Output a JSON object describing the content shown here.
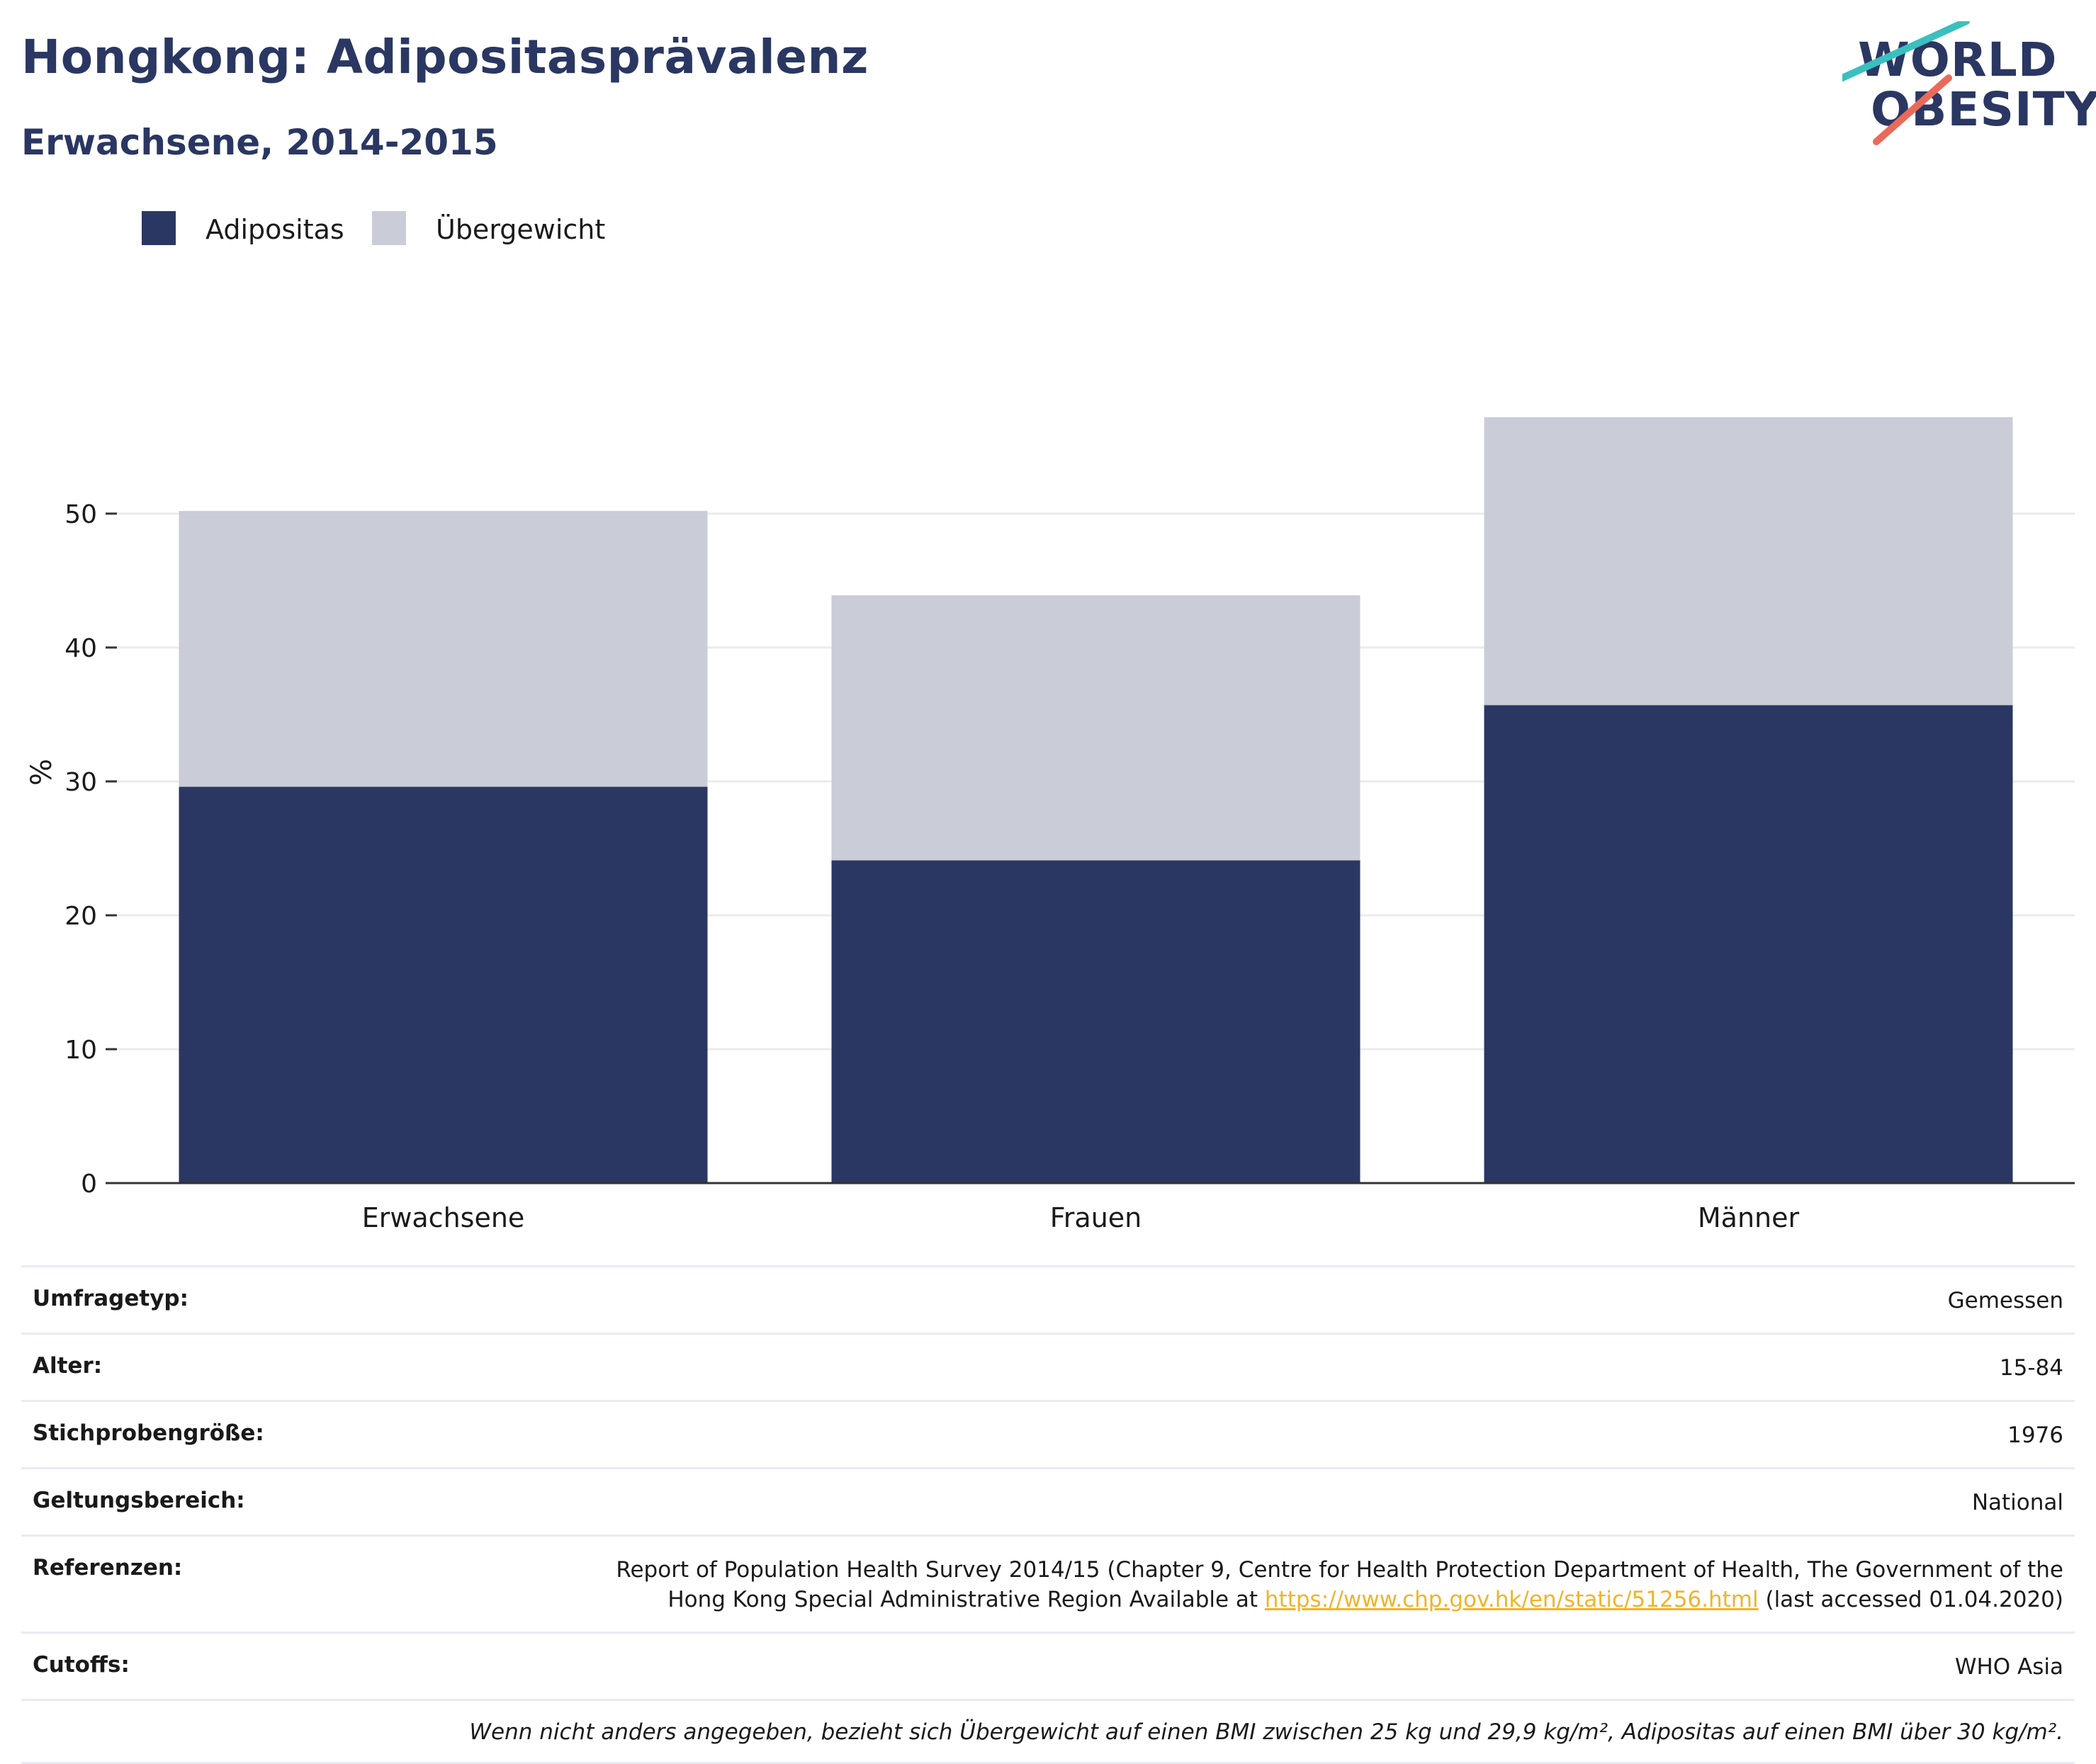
{
  "header": {
    "title": "Hongkong: Adipositasprävalenz",
    "subtitle": "Erwachsene, 2014-2015"
  },
  "logo": {
    "line1": "WORLD",
    "line2": "OBESITY",
    "colors": {
      "text": "#2a3762",
      "slash_top": "#3bbfbf",
      "slash_bottom": "#ea6a5a"
    }
  },
  "legend": [
    {
      "label": "Adipositas",
      "color": "#2a3762"
    },
    {
      "label": "Übergewicht",
      "color": "#caccd8"
    }
  ],
  "chart_data": {
    "type": "bar",
    "stacked": true,
    "categories": [
      "Erwachsene",
      "Frauen",
      "Männer"
    ],
    "series": [
      {
        "name": "Adipositas",
        "color": "#2a3762",
        "values": [
          29.6,
          24.1,
          35.7
        ]
      },
      {
        "name": "Übergewicht",
        "color": "#caccd8",
        "values": [
          20.6,
          19.8,
          21.5
        ]
      }
    ],
    "ylabel": "%",
    "yticks": [
      0,
      10,
      20,
      30,
      40,
      50
    ],
    "ylim": [
      0,
      60
    ],
    "grid": true,
    "legend_position": "top-left"
  },
  "info": {
    "rows": [
      {
        "label": "Umfragetyp:",
        "value": "Gemessen"
      },
      {
        "label": "Alter:",
        "value": "15-84"
      },
      {
        "label": "Stichprobengröße:",
        "value": "1976"
      },
      {
        "label": "Geltungsbereich:",
        "value": "National"
      }
    ],
    "references": {
      "label": "Referenzen:",
      "line1": "Report of Population Health Survey 2014/15 (Chapter 9, Centre for Health Protection Department of Health, The Government of the",
      "line2_prefix": "Hong Kong Special Administrative Region Available at ",
      "link": "https://www.chp.gov.hk/en/static/51256.html",
      "line2_suffix": " (last accessed 01.04.2020)"
    },
    "cutoffs": {
      "label": "Cutoffs:",
      "value": "WHO Asia"
    },
    "note": "Wenn nicht anders angegeben, bezieht sich Übergewicht auf einen BMI zwischen 25 kg und 29,9 kg/m², Adipositas auf einen BMI über 30 kg/m²."
  }
}
